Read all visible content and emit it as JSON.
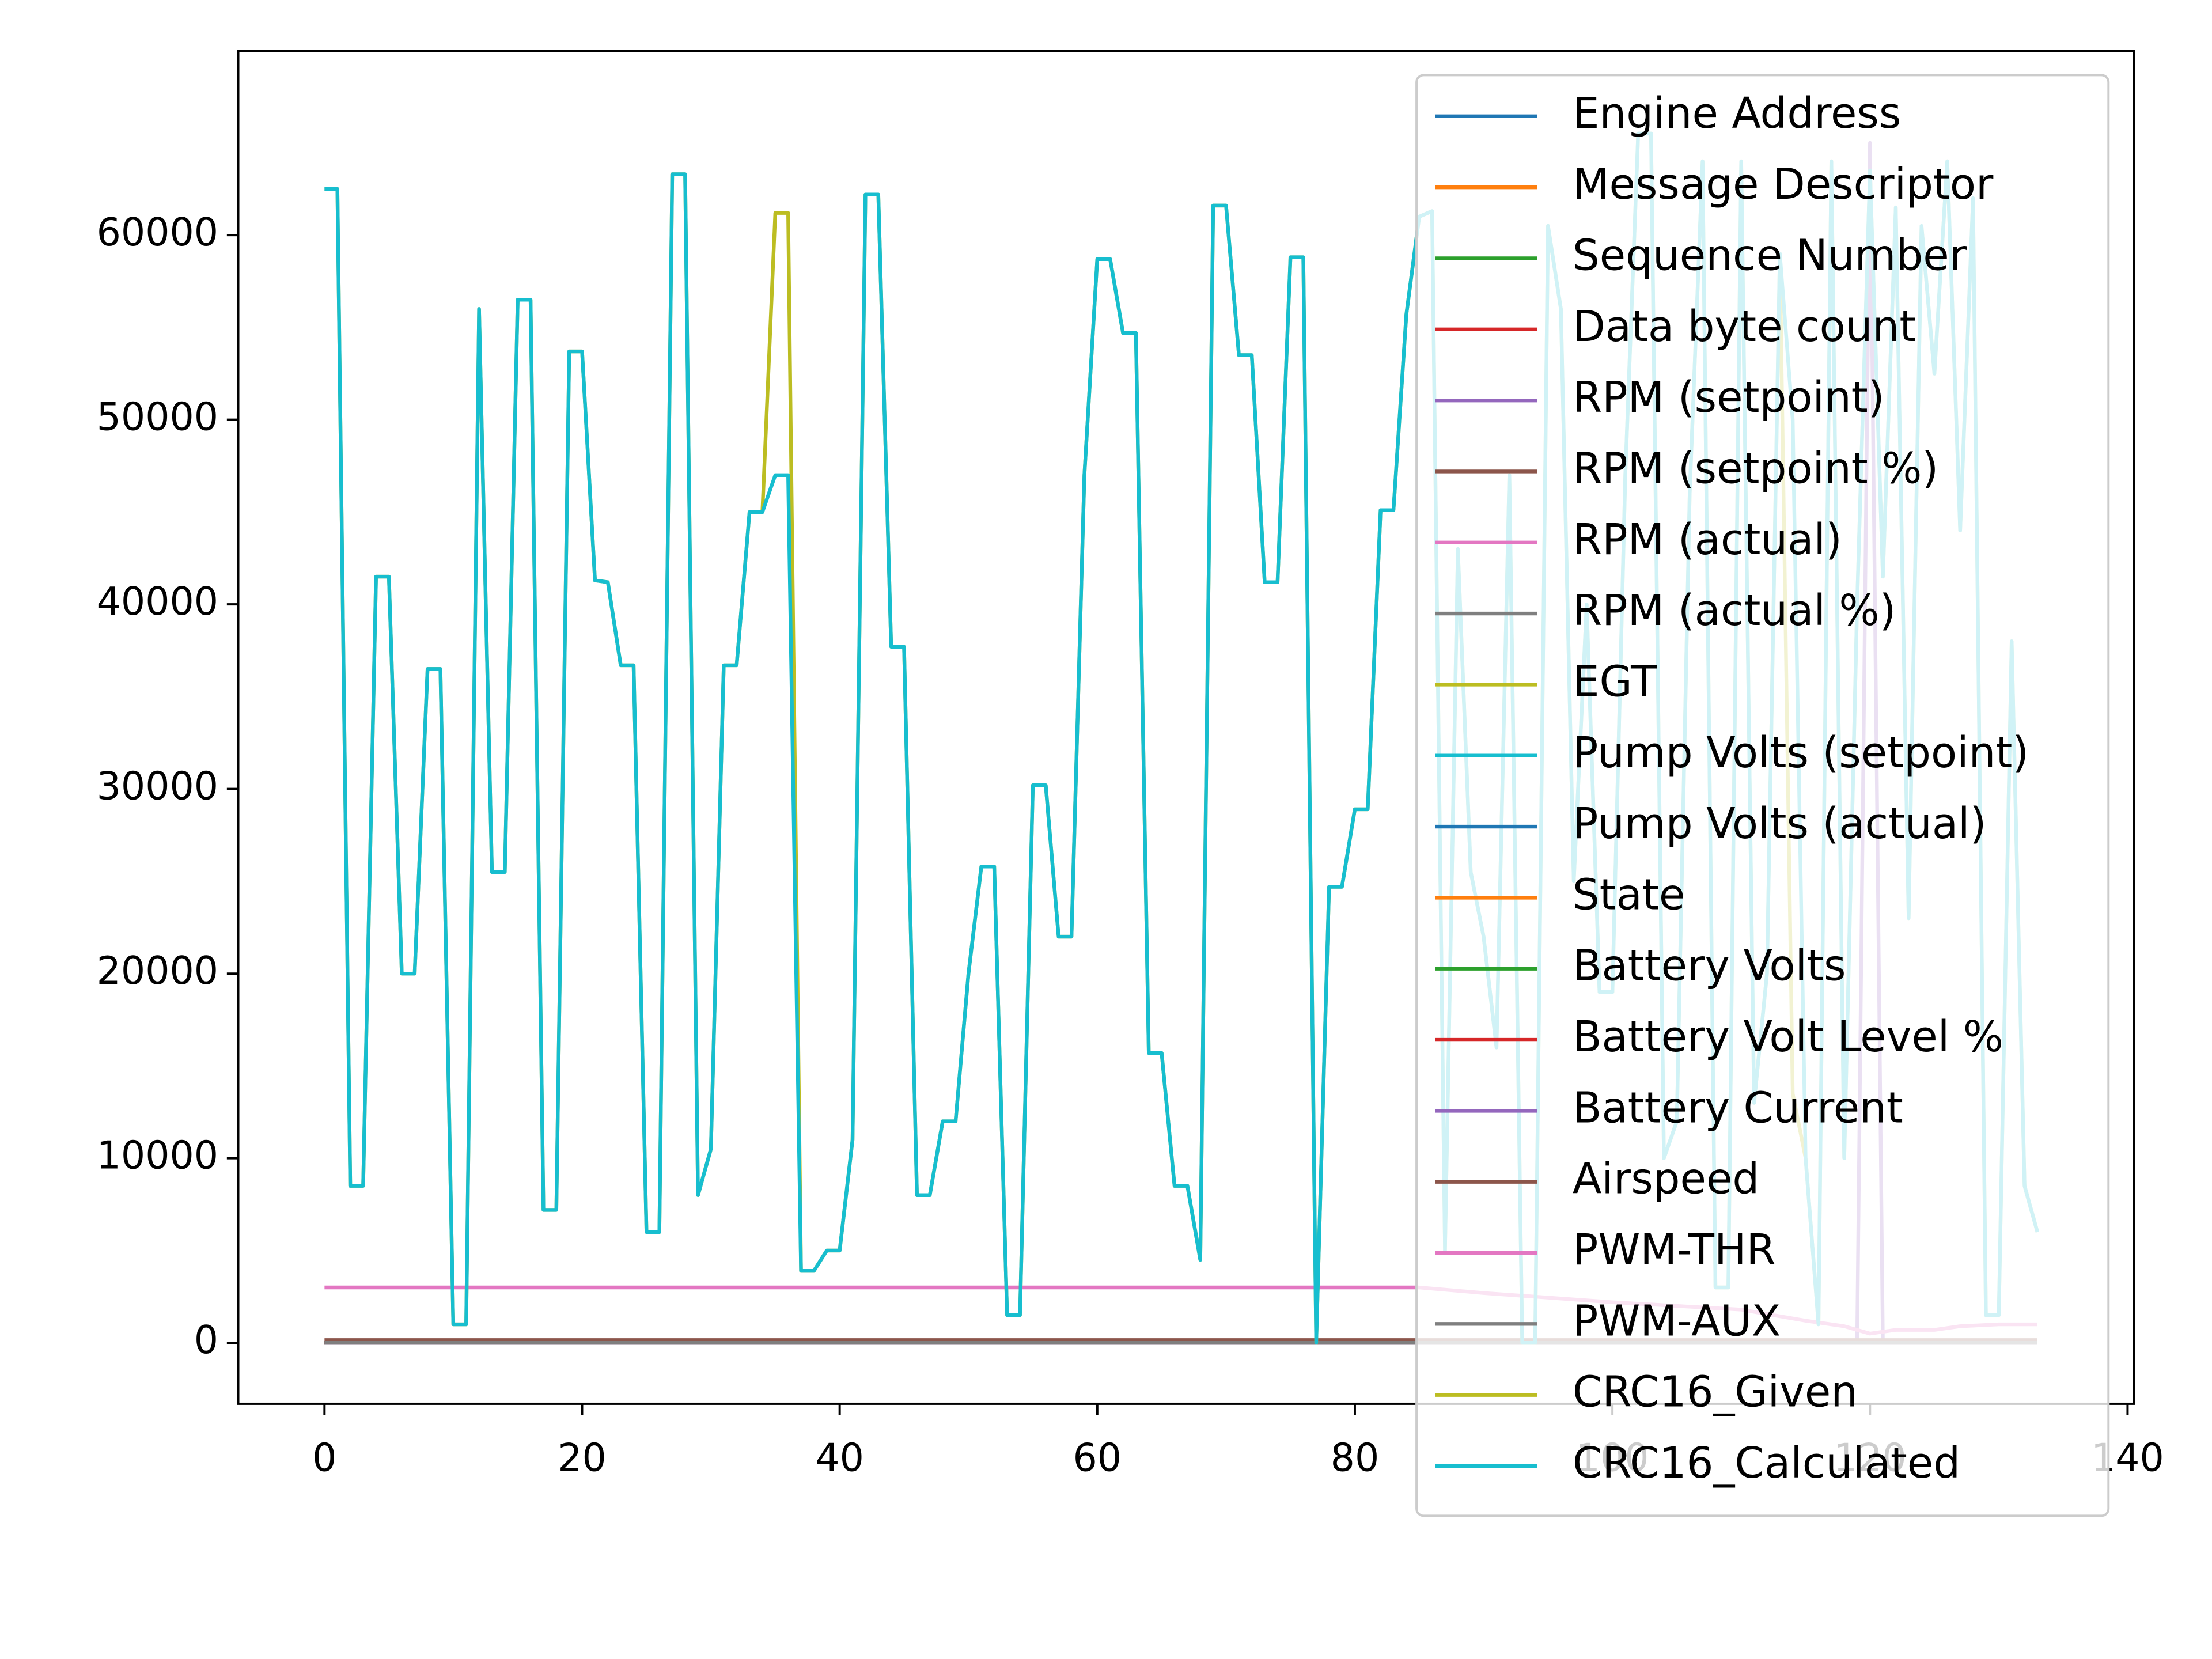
{
  "chart_data": {
    "type": "line",
    "x": [
      0,
      1,
      2,
      3,
      4,
      5,
      6,
      7,
      8,
      9,
      10,
      11,
      12,
      13,
      14,
      15,
      16,
      17,
      18,
      19,
      20,
      21,
      22,
      23,
      24,
      25,
      26,
      27,
      28,
      29,
      30,
      31,
      32,
      33,
      34,
      35,
      36,
      37,
      38,
      39,
      40,
      41,
      42,
      43,
      44,
      45,
      46,
      47,
      48,
      49,
      50,
      51,
      52,
      53,
      54,
      55,
      56,
      57,
      58,
      59,
      60,
      61,
      62,
      63,
      64,
      65,
      66,
      67,
      68,
      69,
      70,
      71,
      72,
      73,
      74,
      75,
      76,
      77,
      78,
      79,
      80,
      81,
      82,
      83,
      84,
      85,
      86,
      87,
      88,
      89,
      90,
      91,
      92,
      93,
      94,
      95,
      96,
      97,
      98,
      99,
      100,
      101,
      102,
      103,
      104,
      105,
      106,
      107,
      108,
      109,
      110,
      111,
      112,
      113,
      114,
      115,
      116,
      117,
      118,
      119,
      120,
      121,
      122,
      123,
      124,
      125,
      126,
      127,
      128,
      129,
      130,
      131,
      132,
      133
    ],
    "series": [
      {
        "name": "Engine Address",
        "color": "#1f77b4",
        "x": [
          0,
          133
        ],
        "values": [
          0,
          0
        ]
      },
      {
        "name": "Message Descriptor",
        "color": "#ff7f0e",
        "x": [
          0,
          133
        ],
        "values": [
          0,
          0
        ]
      },
      {
        "name": "Sequence Number",
        "color": "#2ca02c",
        "x": [
          0,
          133
        ],
        "values": [
          0,
          0
        ]
      },
      {
        "name": "Data byte count",
        "color": "#d62728",
        "x": [
          0,
          133
        ],
        "values": [
          0,
          0
        ]
      },
      {
        "name": "RPM (setpoint)",
        "color": "#9467bd",
        "x": [
          0,
          119,
          120,
          121,
          133
        ],
        "values": [
          0,
          0,
          65000,
          0,
          0
        ]
      },
      {
        "name": "RPM (setpoint %)",
        "color": "#8c564b",
        "x": [
          0,
          133
        ],
        "values": [
          0,
          0
        ]
      },
      {
        "name": "RPM (actual)",
        "color": "#e377c2",
        "x": [
          0,
          133
        ],
        "values": [
          0,
          0
        ]
      },
      {
        "name": "RPM (actual %)",
        "color": "#7f7f7f",
        "x": [
          0,
          133
        ],
        "values": [
          0,
          0
        ]
      },
      {
        "name": "EGT",
        "color": "#bcbd22",
        "x": [
          0,
          133
        ],
        "values": [
          0,
          0
        ]
      },
      {
        "name": "Pump Volts (setpoint)",
        "color": "#17becf",
        "x": [
          0,
          133
        ],
        "values": [
          0,
          0
        ]
      },
      {
        "name": "Pump Volts (actual)",
        "color": "#1f77b4",
        "x": [
          0,
          133
        ],
        "values": [
          0,
          0
        ]
      },
      {
        "name": "State",
        "color": "#ff7f0e",
        "x": [
          0,
          133
        ],
        "values": [
          0,
          0
        ]
      },
      {
        "name": "Battery Volts",
        "color": "#2ca02c",
        "x": [
          0,
          133
        ],
        "values": [
          0,
          0
        ]
      },
      {
        "name": "Battery Volt Level %",
        "color": "#d62728",
        "x": [
          0,
          133
        ],
        "values": [
          0,
          0
        ]
      },
      {
        "name": "Battery Current",
        "color": "#9467bd",
        "x": [
          0,
          133
        ],
        "values": [
          0,
          0
        ]
      },
      {
        "name": "Airspeed",
        "color": "#8c564b",
        "x": [
          0,
          133
        ],
        "values": [
          150,
          150
        ]
      },
      {
        "name": "PWM-THR",
        "color": "#e377c2",
        "x": [
          0,
          85,
          90,
          100,
          110,
          115,
          118,
          120,
          122,
          125,
          127,
          130,
          133
        ],
        "values": [
          3000,
          3000,
          2700,
          2200,
          1800,
          1200,
          900,
          500,
          700,
          700,
          900,
          1000,
          1000
        ]
      },
      {
        "name": "PWM-AUX",
        "color": "#7f7f7f",
        "x": [
          0,
          133
        ],
        "values": [
          0,
          0
        ]
      },
      {
        "name": "CRC16_Given",
        "color": "#bcbd22",
        "values": [
          62500,
          62500,
          8500,
          8500,
          41500,
          41500,
          20000,
          20000,
          36500,
          36500,
          1000,
          1000,
          56000,
          25500,
          25500,
          56500,
          56500,
          7200,
          7200,
          53700,
          53700,
          41300,
          41200,
          36700,
          36700,
          6000,
          6000,
          63300,
          63300,
          8000,
          10500,
          36700,
          36700,
          45000,
          45000,
          61200,
          61200,
          3900,
          3900,
          5000,
          5000,
          11000,
          62200,
          62200,
          37700,
          37700,
          8000,
          8000,
          12000,
          12000,
          20000,
          25800,
          25800,
          1500,
          1500,
          30200,
          30200,
          22000,
          22000,
          47000,
          58700,
          58700,
          54700,
          54700,
          15700,
          15700,
          8500,
          8500,
          4500,
          61600,
          61600,
          53500,
          53500,
          41200,
          41200,
          58800,
          58800,
          0,
          24700,
          24700,
          28900,
          28900,
          45100,
          45100,
          55700,
          61000,
          61300,
          5000,
          43000,
          25500,
          22000,
          16000,
          47000,
          0,
          0,
          60500,
          56000,
          25000,
          40000,
          19000,
          19000,
          47000,
          65500,
          65500,
          10000,
          12000,
          46000,
          64000,
          3000,
          3000,
          64000,
          13000,
          20000,
          59000,
          13500,
          10000,
          1000,
          64000,
          10000,
          40000,
          63500,
          41500,
          61500,
          23000,
          60500,
          52500,
          64000,
          44000,
          62000,
          1500,
          1500,
          38000,
          8500,
          6000
        ]
      },
      {
        "name": "CRC16_Calculated",
        "color": "#17becf",
        "values": [
          62500,
          62500,
          8500,
          8500,
          41500,
          41500,
          20000,
          20000,
          36500,
          36500,
          1000,
          1000,
          56000,
          25500,
          25500,
          56500,
          56500,
          7200,
          7200,
          53700,
          53700,
          41300,
          41200,
          36700,
          36700,
          6000,
          6000,
          63300,
          63300,
          8000,
          10500,
          36700,
          36700,
          45000,
          45000,
          47000,
          47000,
          3900,
          3900,
          5000,
          5000,
          11000,
          62200,
          62200,
          37700,
          37700,
          8000,
          8000,
          12000,
          12000,
          20000,
          25800,
          25800,
          1500,
          1500,
          30200,
          30200,
          22000,
          22000,
          47000,
          58700,
          58700,
          54700,
          54700,
          15700,
          15700,
          8500,
          8500,
          4500,
          61600,
          61600,
          53500,
          53500,
          41200,
          41200,
          58800,
          58800,
          0,
          24700,
          24700,
          28900,
          28900,
          45100,
          45100,
          55700,
          61000,
          61300,
          5000,
          43000,
          25500,
          22000,
          16000,
          47000,
          0,
          0,
          60500,
          56000,
          25000,
          40000,
          19000,
          19000,
          47000,
          65500,
          65500,
          10000,
          12000,
          46000,
          64000,
          3000,
          3000,
          64000,
          13000,
          20000,
          59000,
          50000,
          10000,
          1000,
          64000,
          10000,
          40000,
          63500,
          41500,
          61500,
          23000,
          60500,
          52500,
          64000,
          44000,
          62000,
          1500,
          1500,
          38000,
          8500,
          6000
        ]
      }
    ],
    "xlim": [
      -6.7,
      140.5
    ],
    "ylim": [
      -3300,
      69970
    ],
    "xticks": [
      0,
      20,
      40,
      60,
      80,
      100,
      120,
      140
    ],
    "yticks": [
      0,
      10000,
      20000,
      30000,
      40000,
      50000,
      60000
    ],
    "legend": "upper right"
  }
}
